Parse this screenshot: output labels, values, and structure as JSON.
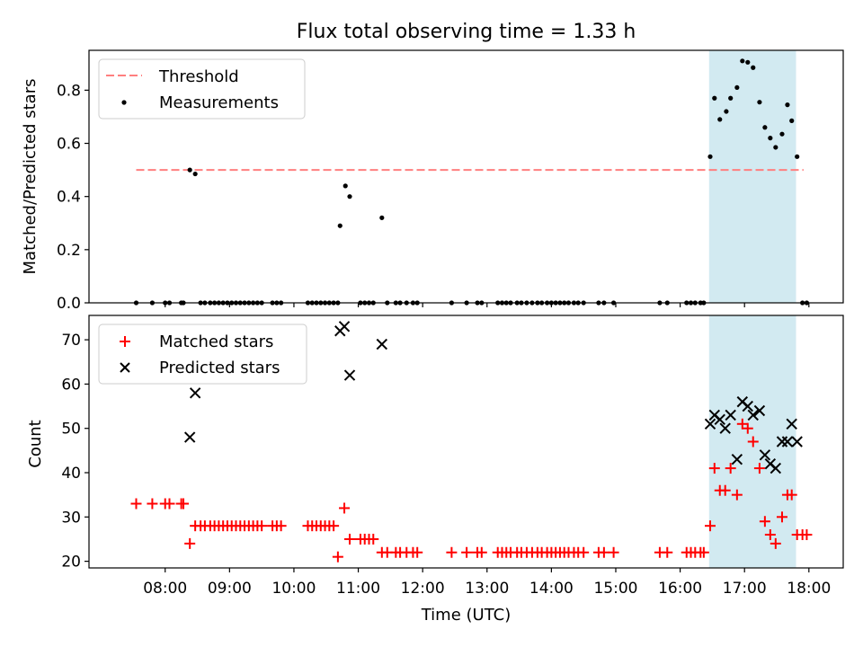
{
  "title": "Flux total observing time = 1.33 h",
  "xlabel": "Time (UTC)",
  "colors": {
    "threshold": "#ff7f7f",
    "measurement": "#000000",
    "matched": "#ff0000",
    "predicted": "#000000",
    "highlight": "#add8e6"
  },
  "chart_data": [
    {
      "type": "scatter",
      "ylabel": "Matched/Predicted stars",
      "ylim": [
        0,
        0.95
      ],
      "yticks": [
        "0.0",
        "0.2",
        "0.4",
        "0.6",
        "0.8"
      ],
      "legend_position": "top-left",
      "highlight_span": [
        "16:27",
        "17:48"
      ],
      "threshold": {
        "name": "Threshold",
        "y": 0.5,
        "x": [
          "07:33",
          "17:55"
        ]
      },
      "series": [
        {
          "name": "Measurements",
          "points": [
            [
              "07:33",
              0
            ],
            [
              "07:48",
              0
            ],
            [
              "08:00",
              0
            ],
            [
              "08:04",
              0
            ],
            [
              "08:15",
              0
            ],
            [
              "08:17",
              0
            ],
            [
              "08:23",
              0.5
            ],
            [
              "08:28",
              0.485
            ],
            [
              "08:33",
              0
            ],
            [
              "08:37",
              0
            ],
            [
              "08:42",
              0
            ],
            [
              "08:46",
              0
            ],
            [
              "08:50",
              0
            ],
            [
              "08:54",
              0
            ],
            [
              "08:58",
              0
            ],
            [
              "09:02",
              0
            ],
            [
              "09:06",
              0
            ],
            [
              "09:10",
              0
            ],
            [
              "09:14",
              0
            ],
            [
              "09:18",
              0
            ],
            [
              "09:22",
              0
            ],
            [
              "09:26",
              0
            ],
            [
              "09:30",
              0
            ],
            [
              "09:40",
              0
            ],
            [
              "09:44",
              0
            ],
            [
              "09:48",
              0
            ],
            [
              "10:13",
              0
            ],
            [
              "10:17",
              0
            ],
            [
              "10:21",
              0
            ],
            [
              "10:25",
              0
            ],
            [
              "10:29",
              0
            ],
            [
              "10:33",
              0
            ],
            [
              "10:37",
              0
            ],
            [
              "10:41",
              0
            ],
            [
              "10:43",
              0.29
            ],
            [
              "10:48",
              0.44
            ],
            [
              "10:52",
              0.4
            ],
            [
              "11:02",
              0
            ],
            [
              "11:06",
              0
            ],
            [
              "11:10",
              0
            ],
            [
              "11:14",
              0
            ],
            [
              "11:22",
              0.32
            ],
            [
              "11:27",
              0
            ],
            [
              "11:35",
              0
            ],
            [
              "11:39",
              0
            ],
            [
              "11:45",
              0
            ],
            [
              "11:51",
              0
            ],
            [
              "11:55",
              0
            ],
            [
              "12:27",
              0
            ],
            [
              "12:41",
              0
            ],
            [
              "12:51",
              0
            ],
            [
              "12:55",
              0
            ],
            [
              "13:10",
              0
            ],
            [
              "13:14",
              0
            ],
            [
              "13:18",
              0
            ],
            [
              "13:22",
              0
            ],
            [
              "13:28",
              0
            ],
            [
              "13:32",
              0
            ],
            [
              "13:37",
              0
            ],
            [
              "13:42",
              0
            ],
            [
              "13:47",
              0
            ],
            [
              "13:51",
              0
            ],
            [
              "13:56",
              0
            ],
            [
              "14:00",
              0
            ],
            [
              "14:04",
              0
            ],
            [
              "14:08",
              0
            ],
            [
              "14:12",
              0
            ],
            [
              "14:16",
              0
            ],
            [
              "14:21",
              0
            ],
            [
              "14:25",
              0
            ],
            [
              "14:30",
              0
            ],
            [
              "14:44",
              0
            ],
            [
              "14:49",
              0
            ],
            [
              "14:58",
              0
            ],
            [
              "15:41",
              0
            ],
            [
              "15:48",
              0
            ],
            [
              "16:06",
              0
            ],
            [
              "16:10",
              0
            ],
            [
              "16:14",
              0
            ],
            [
              "16:19",
              0
            ],
            [
              "16:22",
              0
            ],
            [
              "16:28",
              0.55
            ],
            [
              "16:32",
              0.77
            ],
            [
              "16:37",
              0.69
            ],
            [
              "16:43",
              0.72
            ],
            [
              "16:47",
              0.77
            ],
            [
              "16:53",
              0.81
            ],
            [
              "16:58",
              0.91
            ],
            [
              "17:03",
              0.905
            ],
            [
              "17:08",
              0.885
            ],
            [
              "17:14",
              0.755
            ],
            [
              "17:19",
              0.66
            ],
            [
              "17:24",
              0.62
            ],
            [
              "17:29",
              0.585
            ],
            [
              "17:35",
              0.635
            ],
            [
              "17:40",
              0.745
            ],
            [
              "17:44",
              0.685
            ],
            [
              "17:49",
              0.55
            ],
            [
              "17:54",
              0
            ],
            [
              "17:58",
              0
            ]
          ]
        }
      ]
    },
    {
      "type": "scatter",
      "ylabel": "Count",
      "ylim": [
        18.5,
        75.5
      ],
      "yticks": [
        "20",
        "30",
        "40",
        "50",
        "60",
        "70"
      ],
      "legend_position": "top-left",
      "highlight_span": [
        "16:27",
        "17:48"
      ],
      "x_ticks": [
        "08:00",
        "09:00",
        "10:00",
        "11:00",
        "12:00",
        "13:00",
        "14:00",
        "15:00",
        "16:00",
        "17:00",
        "18:00"
      ],
      "series": [
        {
          "name": "Matched stars",
          "marker": "plus",
          "points": [
            [
              "07:33",
              33
            ],
            [
              "07:48",
              33
            ],
            [
              "08:00",
              33
            ],
            [
              "08:04",
              33
            ],
            [
              "08:15",
              33
            ],
            [
              "08:17",
              33
            ],
            [
              "08:23",
              24
            ],
            [
              "08:28",
              28
            ],
            [
              "08:33",
              28
            ],
            [
              "08:37",
              28
            ],
            [
              "08:42",
              28
            ],
            [
              "08:46",
              28
            ],
            [
              "08:50",
              28
            ],
            [
              "08:54",
              28
            ],
            [
              "08:58",
              28
            ],
            [
              "09:02",
              28
            ],
            [
              "09:06",
              28
            ],
            [
              "09:10",
              28
            ],
            [
              "09:14",
              28
            ],
            [
              "09:18",
              28
            ],
            [
              "09:22",
              28
            ],
            [
              "09:26",
              28
            ],
            [
              "09:30",
              28
            ],
            [
              "09:40",
              28
            ],
            [
              "09:44",
              28
            ],
            [
              "09:48",
              28
            ],
            [
              "10:13",
              28
            ],
            [
              "10:17",
              28
            ],
            [
              "10:21",
              28
            ],
            [
              "10:25",
              28
            ],
            [
              "10:29",
              28
            ],
            [
              "10:33",
              28
            ],
            [
              "10:37",
              28
            ],
            [
              "10:41",
              21
            ],
            [
              "10:47",
              32
            ],
            [
              "10:52",
              25
            ],
            [
              "11:02",
              25
            ],
            [
              "11:06",
              25
            ],
            [
              "11:10",
              25
            ],
            [
              "11:14",
              25
            ],
            [
              "11:22",
              22
            ],
            [
              "11:27",
              22
            ],
            [
              "11:35",
              22
            ],
            [
              "11:39",
              22
            ],
            [
              "11:45",
              22
            ],
            [
              "11:51",
              22
            ],
            [
              "11:55",
              22
            ],
            [
              "12:27",
              22
            ],
            [
              "12:41",
              22
            ],
            [
              "12:51",
              22
            ],
            [
              "12:55",
              22
            ],
            [
              "13:10",
              22
            ],
            [
              "13:14",
              22
            ],
            [
              "13:18",
              22
            ],
            [
              "13:22",
              22
            ],
            [
              "13:28",
              22
            ],
            [
              "13:32",
              22
            ],
            [
              "13:37",
              22
            ],
            [
              "13:42",
              22
            ],
            [
              "13:47",
              22
            ],
            [
              "13:51",
              22
            ],
            [
              "13:56",
              22
            ],
            [
              "14:00",
              22
            ],
            [
              "14:04",
              22
            ],
            [
              "14:08",
              22
            ],
            [
              "14:12",
              22
            ],
            [
              "14:16",
              22
            ],
            [
              "14:21",
              22
            ],
            [
              "14:25",
              22
            ],
            [
              "14:30",
              22
            ],
            [
              "14:44",
              22
            ],
            [
              "14:49",
              22
            ],
            [
              "14:58",
              22
            ],
            [
              "15:41",
              22
            ],
            [
              "15:48",
              22
            ],
            [
              "16:06",
              22
            ],
            [
              "16:10",
              22
            ],
            [
              "16:14",
              22
            ],
            [
              "16:19",
              22
            ],
            [
              "16:22",
              22
            ],
            [
              "16:28",
              28
            ],
            [
              "16:32",
              41
            ],
            [
              "16:37",
              36
            ],
            [
              "16:42",
              36
            ],
            [
              "16:47",
              41
            ],
            [
              "16:53",
              35
            ],
            [
              "16:58",
              51
            ],
            [
              "17:03",
              50
            ],
            [
              "17:08",
              47
            ],
            [
              "17:14",
              41
            ],
            [
              "17:19",
              29
            ],
            [
              "17:24",
              26
            ],
            [
              "17:29",
              24
            ],
            [
              "17:35",
              30
            ],
            [
              "17:40",
              35
            ],
            [
              "17:44",
              35
            ],
            [
              "17:49",
              26
            ],
            [
              "17:54",
              26
            ],
            [
              "17:58",
              26
            ]
          ]
        },
        {
          "name": "Predicted stars",
          "marker": "x",
          "points": [
            [
              "08:23",
              48
            ],
            [
              "08:28",
              58
            ],
            [
              "10:43",
              72
            ],
            [
              "10:47",
              73
            ],
            [
              "10:52",
              62
            ],
            [
              "11:22",
              69
            ],
            [
              "16:28",
              51
            ],
            [
              "16:32",
              53
            ],
            [
              "16:37",
              52
            ],
            [
              "16:42",
              50
            ],
            [
              "16:47",
              53
            ],
            [
              "16:53",
              43
            ],
            [
              "16:58",
              56
            ],
            [
              "17:03",
              55
            ],
            [
              "17:08",
              53
            ],
            [
              "17:14",
              54
            ],
            [
              "17:19",
              44
            ],
            [
              "17:24",
              42
            ],
            [
              "17:29",
              41
            ],
            [
              "17:35",
              47
            ],
            [
              "17:40",
              47
            ],
            [
              "17:44",
              51
            ],
            [
              "17:49",
              47
            ]
          ]
        }
      ]
    }
  ]
}
